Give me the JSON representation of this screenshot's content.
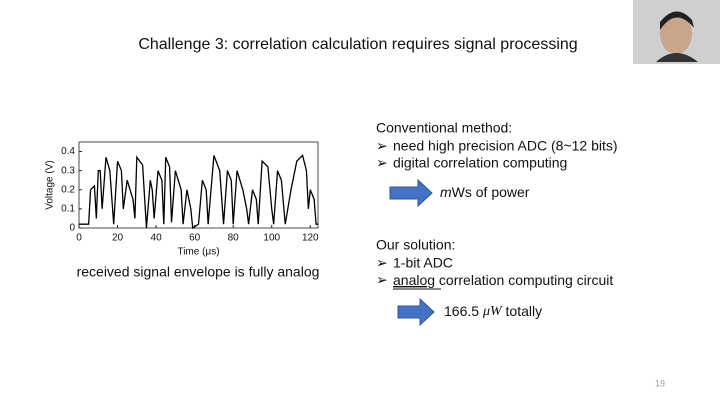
{
  "slide": {
    "title": "Challenge 3: correlation calculation requires signal processing",
    "page_number": "19"
  },
  "chart_data": {
    "type": "line",
    "xlabel": "Time (μs)",
    "ylabel": "Voltage (V)",
    "x": [
      0,
      5,
      6,
      8,
      9,
      10,
      11,
      12,
      14,
      16,
      18,
      20,
      22,
      23,
      25,
      28,
      29,
      30,
      33,
      35,
      37,
      38,
      39,
      41,
      43,
      44,
      45,
      47,
      48,
      50,
      53,
      54,
      56,
      58,
      59,
      62,
      64,
      66,
      67,
      70,
      73,
      75,
      77,
      79,
      80,
      82,
      85,
      87,
      88,
      90,
      92,
      93,
      95,
      98,
      100,
      101,
      103,
      105,
      107,
      110,
      113,
      116,
      118,
      119,
      120,
      122,
      123,
      124
    ],
    "series": [
      {
        "name": "signal",
        "color": "#000000",
        "values": [
          0.02,
          0.02,
          0.2,
          0.22,
          0.05,
          0.3,
          0.3,
          0.1,
          0.37,
          0.3,
          0.02,
          0.35,
          0.3,
          0.1,
          0.25,
          0.15,
          0.05,
          0.37,
          0.33,
          0.0,
          0.25,
          0.2,
          0.05,
          0.3,
          0.25,
          0.02,
          0.37,
          0.32,
          0.03,
          0.3,
          0.2,
          0.02,
          0.2,
          0.1,
          0.0,
          0.02,
          0.25,
          0.2,
          0.02,
          0.38,
          0.3,
          0.02,
          0.3,
          0.25,
          0.02,
          0.3,
          0.2,
          0.1,
          0.02,
          0.2,
          0.15,
          0.02,
          0.35,
          0.32,
          0.1,
          0.02,
          0.3,
          0.25,
          0.02,
          0.2,
          0.35,
          0.38,
          0.3,
          0.1,
          0.2,
          0.15,
          0.02,
          0.02
        ]
      }
    ],
    "xlim": [
      0,
      124
    ],
    "ylim": [
      0,
      0.45
    ],
    "xticks": [
      0,
      20,
      40,
      60,
      80,
      100,
      120
    ],
    "yticks": [
      0,
      0.1,
      0.2,
      0.3,
      0.4
    ]
  },
  "caption": "received signal envelope is fully analog",
  "bullet": "➢",
  "conventional": {
    "heading": "Conventional method:",
    "items": [
      "need high precision ADC (8~12 bits)",
      "digital correlation computing"
    ],
    "result": [
      "m",
      "Ws of power"
    ]
  },
  "solution": {
    "heading": "Our solution:",
    "item1": "1-bit ADC",
    "item2": [
      "analog",
      " correlation computing circuit"
    ],
    "result": [
      "166.5 ",
      "μW",
      " totally"
    ]
  }
}
